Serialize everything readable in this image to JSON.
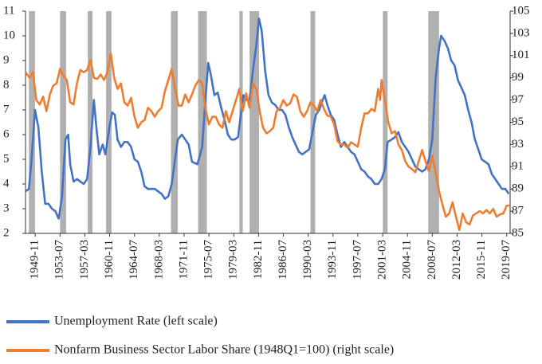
{
  "chart_data": {
    "type": "line",
    "xlim": [
      1948.4,
      2020.0
    ],
    "ylim": [
      2,
      11
    ],
    "y2lim": [
      85,
      105
    ],
    "yticks": [
      2,
      3,
      4,
      5,
      6,
      7,
      8,
      9,
      10,
      11
    ],
    "y2ticks": [
      85,
      87,
      89,
      91,
      93,
      95,
      97,
      99,
      101,
      103,
      105
    ],
    "xticks": [
      {
        "value": 1949.83,
        "label": "1949-11"
      },
      {
        "value": 1953.5,
        "label": "1953-07"
      },
      {
        "value": 1957.17,
        "label": "1957-03"
      },
      {
        "value": 1960.83,
        "label": "1960-11"
      },
      {
        "value": 1964.5,
        "label": "1964-07"
      },
      {
        "value": 1968.17,
        "label": "1968-03"
      },
      {
        "value": 1971.83,
        "label": "1971-11"
      },
      {
        "value": 1975.5,
        "label": "1975-07"
      },
      {
        "value": 1979.17,
        "label": "1979-03"
      },
      {
        "value": 1982.83,
        "label": "1982-11"
      },
      {
        "value": 1986.5,
        "label": "1986-07"
      },
      {
        "value": 1990.17,
        "label": "1990-03"
      },
      {
        "value": 1993.83,
        "label": "1993-11"
      },
      {
        "value": 1997.5,
        "label": "1997-07"
      },
      {
        "value": 2001.17,
        "label": "2001-03"
      },
      {
        "value": 2004.83,
        "label": "2004-11"
      },
      {
        "value": 2008.5,
        "label": "2008-07"
      },
      {
        "value": 2012.17,
        "label": "2012-03"
      },
      {
        "value": 2015.83,
        "label": "2015-11"
      },
      {
        "value": 2019.5,
        "label": "2019-07"
      }
    ],
    "recessions": [
      [
        1948.9,
        1949.8
      ],
      [
        1953.5,
        1954.4
      ],
      [
        1957.6,
        1958.3
      ],
      [
        1960.3,
        1961.1
      ],
      [
        1969.9,
        1970.9
      ],
      [
        1973.9,
        1975.2
      ],
      [
        1980.0,
        1980.5
      ],
      [
        1981.5,
        1982.9
      ],
      [
        1990.5,
        1991.2
      ],
      [
        2001.2,
        2001.9
      ],
      [
        2007.9,
        2009.5
      ]
    ],
    "recession_color": "#b0b0b0",
    "series": [
      {
        "name": "Unemployment Rate (left scale)",
        "color": "#4472c4",
        "axis": "y",
        "x": [
          1948.4,
          1948.9,
          1949.3,
          1949.8,
          1950.3,
          1950.8,
          1951.3,
          1951.8,
          1952.3,
          1952.8,
          1953.3,
          1953.8,
          1954.3,
          1954.7,
          1955.0,
          1955.5,
          1956.0,
          1956.5,
          1957.0,
          1957.5,
          1958.0,
          1958.5,
          1958.9,
          1959.3,
          1959.8,
          1960.2,
          1960.8,
          1961.2,
          1961.6,
          1962.0,
          1962.5,
          1963.0,
          1963.5,
          1964.0,
          1964.5,
          1965.0,
          1965.5,
          1966.0,
          1966.5,
          1967.0,
          1967.5,
          1968.0,
          1968.5,
          1969.0,
          1969.5,
          1970.0,
          1970.5,
          1970.9,
          1971.5,
          1972.0,
          1972.5,
          1973.0,
          1973.8,
          1974.5,
          1975.0,
          1975.4,
          1975.8,
          1976.3,
          1976.8,
          1977.3,
          1977.8,
          1978.3,
          1978.8,
          1979.3,
          1979.8,
          1980.3,
          1980.6,
          1981.0,
          1981.5,
          1982.0,
          1982.5,
          1982.9,
          1983.3,
          1983.8,
          1984.3,
          1984.8,
          1985.3,
          1985.8,
          1986.3,
          1986.8,
          1987.3,
          1987.8,
          1988.3,
          1988.8,
          1989.3,
          1989.8,
          1990.3,
          1990.8,
          1991.3,
          1991.8,
          1992.3,
          1992.6,
          1993.0,
          1993.5,
          1994.0,
          1994.5,
          1995.0,
          1995.5,
          1996.0,
          1996.5,
          1997.0,
          1997.5,
          1998.0,
          1998.5,
          1999.0,
          1999.5,
          2000.0,
          2000.5,
          2001.0,
          2001.5,
          2001.9,
          2002.5,
          2003.0,
          2003.5,
          2004.0,
          2004.5,
          2005.0,
          2005.5,
          2006.0,
          2006.5,
          2007.0,
          2007.5,
          2008.0,
          2008.5,
          2009.0,
          2009.5,
          2009.8,
          2010.3,
          2010.8,
          2011.3,
          2011.8,
          2012.3,
          2012.8,
          2013.3,
          2013.8,
          2014.3,
          2014.8,
          2015.3,
          2015.8,
          2016.3,
          2016.8,
          2017.3,
          2017.8,
          2018.3,
          2018.8,
          2019.3,
          2019.8
        ],
        "values": [
          3.7,
          3.8,
          5.0,
          7.0,
          6.3,
          4.5,
          3.2,
          3.2,
          3.0,
          2.9,
          2.6,
          3.5,
          5.8,
          6.0,
          4.8,
          4.1,
          4.2,
          4.1,
          4.0,
          4.2,
          5.5,
          7.4,
          6.2,
          5.2,
          5.6,
          5.2,
          6.3,
          6.9,
          6.8,
          5.8,
          5.5,
          5.7,
          5.7,
          5.5,
          5.0,
          4.9,
          4.5,
          3.9,
          3.8,
          3.8,
          3.8,
          3.7,
          3.6,
          3.4,
          3.5,
          4.0,
          5.0,
          5.8,
          6.0,
          5.8,
          5.6,
          4.9,
          4.8,
          5.5,
          7.5,
          8.9,
          8.4,
          7.6,
          7.7,
          7.1,
          6.6,
          6.0,
          5.8,
          5.8,
          5.9,
          7.0,
          7.6,
          7.4,
          7.4,
          8.6,
          9.6,
          10.7,
          10.2,
          8.6,
          7.6,
          7.3,
          7.2,
          7.0,
          7.0,
          6.8,
          6.3,
          5.9,
          5.6,
          5.3,
          5.2,
          5.3,
          5.4,
          6.1,
          6.8,
          7.0,
          7.4,
          7.6,
          7.2,
          6.8,
          6.6,
          6.0,
          5.5,
          5.7,
          5.5,
          5.3,
          5.2,
          4.9,
          4.6,
          4.5,
          4.3,
          4.2,
          4.0,
          4.0,
          4.2,
          4.6,
          5.7,
          5.8,
          5.9,
          6.1,
          5.7,
          5.5,
          5.3,
          5.0,
          4.7,
          4.6,
          4.5,
          4.6,
          5.0,
          5.8,
          8.3,
          9.5,
          10.0,
          9.8,
          9.5,
          9.0,
          8.8,
          8.2,
          7.9,
          7.6,
          7.0,
          6.5,
          5.8,
          5.4,
          5.0,
          4.9,
          4.8,
          4.4,
          4.2,
          4.0,
          3.8,
          3.8,
          3.6
        ]
      },
      {
        "name": "Nonfarm Business Sector Labor Share (1948Q1=100) (right scale)",
        "color": "#ed7d31",
        "axis": "y2",
        "x": [
          1948.4,
          1949.0,
          1949.5,
          1950.0,
          1950.5,
          1951.0,
          1951.5,
          1952.0,
          1952.5,
          1953.0,
          1953.5,
          1954.0,
          1954.5,
          1955.0,
          1955.5,
          1956.0,
          1956.5,
          1957.0,
          1957.5,
          1958.0,
          1958.5,
          1959.0,
          1959.5,
          1960.0,
          1960.5,
          1961.0,
          1961.5,
          1962.0,
          1962.5,
          1963.0,
          1963.5,
          1964.0,
          1964.5,
          1965.0,
          1965.5,
          1966.0,
          1966.5,
          1967.0,
          1967.5,
          1968.0,
          1968.5,
          1969.0,
          1969.5,
          1970.0,
          1970.5,
          1971.0,
          1971.5,
          1972.0,
          1972.5,
          1973.0,
          1973.5,
          1974.0,
          1974.5,
          1975.0,
          1975.5,
          1976.0,
          1976.5,
          1977.0,
          1977.5,
          1978.0,
          1978.5,
          1979.0,
          1979.5,
          1980.0,
          1980.5,
          1981.0,
          1981.5,
          1982.0,
          1982.5,
          1983.0,
          1983.5,
          1984.0,
          1984.5,
          1985.0,
          1985.5,
          1986.0,
          1986.5,
          1987.0,
          1987.5,
          1988.0,
          1988.5,
          1989.0,
          1989.5,
          1990.0,
          1990.5,
          1991.0,
          1991.5,
          1992.0,
          1992.5,
          1993.0,
          1993.5,
          1994.0,
          1994.5,
          1995.0,
          1995.5,
          1996.0,
          1996.5,
          1997.0,
          1997.5,
          1998.0,
          1998.5,
          1999.0,
          1999.5,
          2000.0,
          2000.5,
          2000.8,
          2001.0,
          2001.5,
          2002.0,
          2002.5,
          2003.0,
          2003.5,
          2004.0,
          2004.5,
          2005.0,
          2005.5,
          2006.0,
          2006.5,
          2007.0,
          2007.5,
          2008.0,
          2008.5,
          2009.0,
          2009.5,
          2010.0,
          2010.5,
          2011.0,
          2011.5,
          2012.0,
          2012.5,
          2013.0,
          2013.5,
          2014.0,
          2014.5,
          2015.0,
          2015.5,
          2016.0,
          2016.5,
          2017.0,
          2017.5,
          2018.0,
          2018.5,
          2019.0,
          2019.5,
          2019.9
        ],
        "values": [
          99.5,
          99.0,
          99.5,
          97.0,
          96.6,
          97.3,
          96.0,
          97.5,
          98.3,
          98.5,
          99.8,
          99.2,
          98.8,
          96.8,
          96.6,
          98.5,
          99.7,
          99.5,
          99.7,
          100.6,
          99.0,
          98.9,
          99.3,
          98.8,
          99.5,
          101.2,
          99.0,
          98.0,
          98.5,
          96.8,
          96.5,
          97.2,
          95.5,
          94.5,
          95.0,
          95.2,
          96.3,
          96.0,
          95.5,
          96.0,
          96.3,
          97.8,
          98.8,
          99.8,
          98.0,
          96.5,
          96.5,
          97.5,
          96.8,
          97.5,
          98.3,
          98.8,
          98.5,
          96.2,
          94.8,
          95.5,
          95.5,
          94.8,
          94.5,
          96.0,
          95.0,
          96.0,
          97.0,
          98.0,
          96.0,
          97.6,
          96.3,
          98.5,
          98.0,
          96.0,
          94.5,
          94.0,
          94.2,
          94.5,
          96.0,
          96.3,
          97.0,
          96.5,
          96.7,
          97.5,
          97.3,
          96.0,
          95.5,
          96.0,
          96.8,
          96.5,
          96.0,
          97.0,
          96.2,
          95.6,
          95.5,
          94.8,
          93.3,
          93.0,
          93.0,
          92.7,
          93.2,
          93.0,
          92.8,
          94.5,
          95.8,
          95.8,
          96.2,
          96.0,
          98.0,
          97.0,
          98.8,
          97.0,
          95.0,
          94.0,
          94.2,
          93.0,
          92.5,
          91.5,
          91.0,
          90.8,
          90.5,
          91.5,
          92.5,
          91.5,
          90.6,
          92.0,
          90.5,
          88.8,
          87.6,
          86.5,
          86.8,
          87.8,
          86.5,
          85.3,
          86.8,
          86.0,
          85.8,
          86.6,
          86.8,
          87.0,
          86.8,
          87.1,
          86.8,
          87.2,
          86.5,
          86.7,
          86.8,
          87.5,
          87.5
        ]
      }
    ]
  }
}
